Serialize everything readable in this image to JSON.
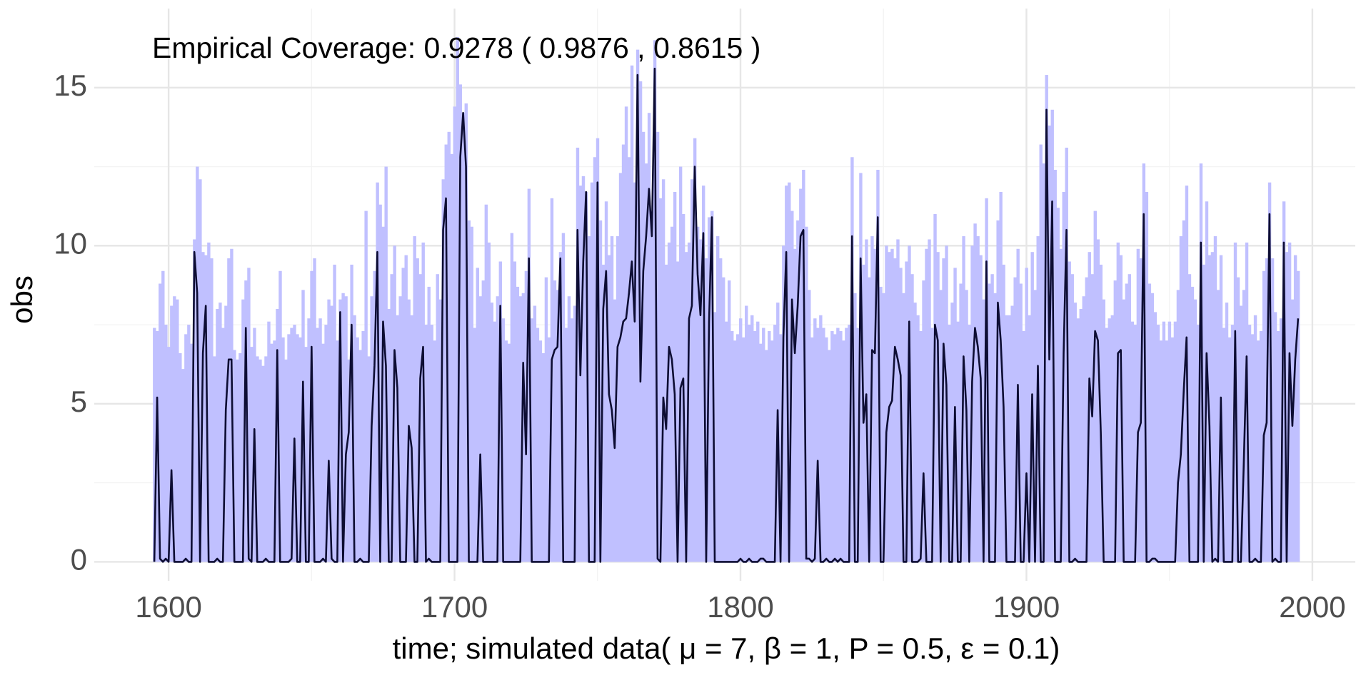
{
  "chart_data": {
    "type": "line",
    "annotation": "Empirical Coverage: 0.9278 ( 0.9876 , 0.8615 )",
    "xlabel": "time; simulated data( μ = 7,  β = 1,  P = 0.5,  ε = 0.1)",
    "ylabel": "obs",
    "xlim": [
      1574,
      2015
    ],
    "ylim": [
      -0.6,
      17.5
    ],
    "xticks": [
      1600,
      1700,
      1800,
      1900,
      2000
    ],
    "yticks": [
      0,
      5,
      10,
      15
    ],
    "minor_xticks": [
      1650,
      1750,
      1850,
      1950
    ],
    "minor_yticks": [
      2.5,
      7.5,
      12.5
    ],
    "grid": true,
    "x": [
      1595,
      1596,
      1597,
      1598,
      1599,
      1600,
      1601,
      1602,
      1603,
      1604,
      1605,
      1606,
      1607,
      1608,
      1609,
      1610,
      1611,
      1612,
      1613,
      1614,
      1615,
      1616,
      1617,
      1618,
      1619,
      1620,
      1621,
      1622,
      1623,
      1624,
      1625,
      1626,
      1627,
      1628,
      1629,
      1630,
      1631,
      1632,
      1633,
      1634,
      1635,
      1636,
      1637,
      1638,
      1639,
      1640,
      1641,
      1642,
      1643,
      1644,
      1645,
      1646,
      1647,
      1648,
      1649,
      1650,
      1651,
      1652,
      1653,
      1654,
      1655,
      1656,
      1657,
      1658,
      1659,
      1660,
      1661,
      1662,
      1663,
      1664,
      1665,
      1666,
      1667,
      1668,
      1669,
      1670,
      1671,
      1672,
      1673,
      1674,
      1675,
      1676,
      1677,
      1678,
      1679,
      1680,
      1681,
      1682,
      1683,
      1684,
      1685,
      1686,
      1687,
      1688,
      1689,
      1690,
      1691,
      1692,
      1693,
      1694,
      1695,
      1696,
      1697,
      1698,
      1699,
      1700,
      1701,
      1702,
      1703,
      1704,
      1705,
      1706,
      1707,
      1708,
      1709,
      1710,
      1711,
      1712,
      1713,
      1714,
      1715,
      1716,
      1717,
      1718,
      1719,
      1720,
      1721,
      1722,
      1723,
      1724,
      1725,
      1726,
      1727,
      1728,
      1729,
      1730,
      1731,
      1732,
      1733,
      1734,
      1735,
      1736,
      1737,
      1738,
      1739,
      1740,
      1741,
      1742,
      1743,
      1744,
      1745,
      1746,
      1747,
      1748,
      1749,
      1750,
      1751,
      1752,
      1753,
      1754,
      1755,
      1756,
      1757,
      1758,
      1759,
      1760,
      1761,
      1762,
      1763,
      1764,
      1765,
      1766,
      1767,
      1768,
      1769,
      1770,
      1771,
      1772,
      1773,
      1774,
      1775,
      1776,
      1777,
      1778,
      1779,
      1780,
      1781,
      1782,
      1783,
      1784,
      1785,
      1786,
      1787,
      1788,
      1789,
      1790,
      1791,
      1792,
      1793,
      1794,
      1795,
      1796,
      1797,
      1798,
      1799,
      1800,
      1801,
      1802,
      1803,
      1804,
      1805,
      1806,
      1807,
      1808,
      1809,
      1810,
      1811,
      1812,
      1813,
      1814,
      1815,
      1816,
      1817,
      1818,
      1819,
      1820,
      1821,
      1822,
      1823,
      1824,
      1825,
      1826,
      1827,
      1828,
      1829,
      1830,
      1831,
      1832,
      1833,
      1834,
      1835,
      1836,
      1837,
      1838,
      1839,
      1840,
      1841,
      1842,
      1843,
      1844,
      1845,
      1846,
      1847,
      1848,
      1849,
      1850,
      1851,
      1852,
      1853,
      1854,
      1855,
      1856,
      1857,
      1858,
      1859,
      1860,
      1861,
      1862,
      1863,
      1864,
      1865,
      1866,
      1867,
      1868,
      1869,
      1870,
      1871,
      1872,
      1873,
      1874,
      1875,
      1876,
      1877,
      1878,
      1879,
      1880,
      1881,
      1882,
      1883,
      1884,
      1885,
      1886,
      1887,
      1888,
      1889,
      1890,
      1891,
      1892,
      1893,
      1894,
      1895,
      1896,
      1897,
      1898,
      1899,
      1900,
      1901,
      1902,
      1903,
      1904,
      1905,
      1906,
      1907,
      1908,
      1909,
      1910,
      1911,
      1912,
      1913,
      1914,
      1915,
      1916,
      1917,
      1918,
      1919,
      1920,
      1921,
      1922,
      1923,
      1924,
      1925,
      1926,
      1927,
      1928,
      1929,
      1930,
      1931,
      1932,
      1933,
      1934,
      1935,
      1936,
      1937,
      1938,
      1939,
      1940,
      1941,
      1942,
      1943,
      1944,
      1945,
      1946,
      1947,
      1948,
      1949,
      1950,
      1951,
      1952,
      1953,
      1954,
      1955,
      1956,
      1957,
      1958,
      1959,
      1960,
      1961,
      1962,
      1963,
      1964,
      1965,
      1966,
      1967,
      1968,
      1969,
      1970,
      1971,
      1972,
      1973,
      1974,
      1975,
      1976,
      1977,
      1978,
      1979,
      1980,
      1981,
      1982,
      1983,
      1984,
      1985,
      1986,
      1987,
      1988,
      1989,
      1990,
      1991,
      1992,
      1993,
      1994,
      1995
    ],
    "series": [
      {
        "style": "bar",
        "color": "#c0c0ff",
        "values": [
          7.4,
          7.3,
          8.8,
          9.2,
          7.5,
          6.8,
          8.1,
          8.4,
          8.3,
          6.6,
          6.1,
          7.2,
          7.5,
          6.9,
          10.2,
          12.5,
          12.1,
          9.8,
          9.7,
          10.1,
          9.6,
          6.5,
          8.0,
          8.2,
          7.4,
          8.1,
          9.6,
          9.9,
          6.7,
          6.4,
          6.6,
          8.3,
          8.9,
          9.3,
          6.8,
          7.4,
          6.5,
          6.4,
          6.2,
          6.5,
          7.6,
          6.9,
          7.0,
          8.0,
          9.2,
          7.1,
          6.4,
          7.2,
          7.4,
          7.5,
          7.2,
          7.1,
          8.6,
          6.8,
          7.7,
          9.2,
          9.6,
          7.4,
          7.7,
          6.9,
          7.5,
          8.3,
          8.1,
          9.4,
          7.0,
          8.3,
          8.5,
          8.4,
          6.4,
          9.4,
          7.8,
          7.1,
          6.7,
          7.3,
          11.1,
          6.5,
          8.4,
          9.2,
          12.0,
          11.3,
          10.6,
          12.5,
          8.0,
          9.1,
          10.0,
          7.8,
          8.4,
          9.3,
          9.7,
          8.3,
          7.8,
          10.3,
          9.6,
          9.1,
          10.1,
          7.5,
          8.7,
          7.5,
          7.0,
          9.1,
          8.3,
          12.1,
          13.2,
          13.6,
          12.9,
          14.4,
          16.6,
          15.1,
          14.2,
          14.5,
          10.8,
          10.6,
          7.4,
          9.3,
          8.4,
          8.9,
          11.3,
          10.1,
          8.2,
          7.6,
          8.4,
          9.5,
          7.7,
          7.0,
          6.9,
          10.4,
          9.5,
          8.7,
          8.4,
          8.5,
          9.2,
          11.8,
          7.7,
          8.1,
          7.4,
          7.0,
          6.6,
          9.0,
          7.1,
          11.5,
          8.9,
          8.6,
          9.8,
          10.4,
          7.4,
          8.4,
          7.7,
          8.1,
          13.1,
          11.9,
          12.2,
          11.7,
          10.3,
          12.0,
          12.8,
          13.4,
          10.8,
          9.4,
          11.4,
          9.7,
          10.3,
          8.3,
          10.3,
          12.3,
          13.2,
          14.4,
          12.8,
          15.7,
          12.0,
          16.2,
          15.2,
          13.6,
          12.6,
          14.2,
          11.1,
          16.5,
          13.6,
          11.5,
          12.1,
          9.4,
          10.1,
          10.6,
          11.7,
          9.5,
          12.5,
          11.0,
          9.8,
          10.1,
          12.1,
          13.4,
          10.6,
          10.2,
          11.9,
          9.6,
          10.9,
          11.1,
          7.9,
          10.3,
          9.6,
          9.0,
          7.6,
          8.9,
          7.3,
          7.0,
          7.2,
          7.7,
          7.1,
          8.1,
          7.5,
          7.8,
          7.3,
          7.6,
          6.9,
          7.4,
          6.7,
          7.3,
          7.0,
          7.5,
          8.2,
          7.2,
          10.0,
          11.9,
          12.0,
          11.1,
          9.9,
          10.8,
          11.8,
          12.4,
          10.6,
          8.6,
          7.1,
          7.7,
          7.4,
          7.8,
          7.4,
          7.1,
          6.7,
          7.3,
          7.2,
          7.4,
          7.3,
          7.0,
          7.4,
          7.5,
          12.8,
          8.5,
          7.4,
          12.3,
          9.4,
          10.2,
          9.0,
          10.3,
          9.9,
          12.4,
          8.7,
          8.5,
          10.0,
          9.8,
          9.9,
          9.6,
          10.2,
          9.3,
          8.5,
          9.5,
          10.0,
          9.1,
          8.2,
          7.8,
          7.3,
          8.9,
          9.9,
          10.2,
          7.4,
          11.0,
          9.8,
          8.6,
          9.6,
          10.0,
          7.5,
          8.2,
          9.3,
          7.6,
          8.8,
          10.3,
          8.6,
          7.5,
          10.0,
          10.7,
          10.3,
          9.7,
          8.3,
          11.5,
          8.8,
          9.1,
          8.5,
          10.8,
          11.7,
          9.4,
          7.8,
          7.8,
          8.1,
          9.0,
          9.9,
          8.8,
          7.3,
          9.3,
          7.8,
          9.8,
          8.6,
          10.3,
          13.2,
          12.6,
          15.4,
          13.8,
          14.3,
          12.4,
          11.2,
          9.9,
          11.7,
          13.1,
          9.5,
          9.1,
          8.2,
          7.7,
          8.0,
          8.4,
          9.0,
          9.8,
          9.1,
          11.1,
          10.2,
          9.4,
          8.3,
          7.4,
          7.7,
          7.8,
          8.9,
          10.1,
          9.7,
          8.3,
          8.8,
          9.1,
          7.6,
          7.5,
          9.9,
          9.6,
          12.6,
          11.7,
          8.8,
          8.5,
          7.9,
          7.5,
          7.0,
          7.6,
          7.0,
          7.6,
          7.1,
          7.6,
          8.6,
          10.3,
          10.8,
          11.9,
          9.1,
          8.7,
          8.3,
          7.5,
          12.6,
          9.4,
          11.4,
          9.7,
          9.8,
          10.3,
          8.6,
          9.7,
          7.4,
          8.2,
          7.1,
          7.5,
          10.1,
          9.0,
          8.1,
          8.6,
          10.1,
          7.5,
          7.2,
          7.8,
          7.0,
          7.3,
          9.2,
          9.6,
          12.0,
          9.6,
          7.9,
          7.3,
          7.7,
          11.4,
          9.8,
          10.1,
          8.3,
          9.7,
          9.2
        ]
      },
      {
        "style": "line",
        "color": "#0d0d33",
        "values": [
          0,
          5.2,
          0.1,
          0,
          0.1,
          0,
          2.9,
          0,
          0,
          0,
          0,
          0.1,
          0,
          0,
          9.8,
          8.5,
          0,
          6.6,
          8.1,
          0,
          0,
          0,
          0.1,
          0,
          0,
          4.8,
          6.4,
          6.4,
          0,
          0,
          0,
          0,
          7.4,
          0.1,
          0,
          4.2,
          0,
          0,
          0,
          0.1,
          0,
          0,
          0,
          6.7,
          0,
          0,
          0,
          0,
          0.1,
          3.9,
          0,
          0,
          5.7,
          0,
          0,
          6.8,
          0,
          0,
          0,
          0.1,
          0,
          3.2,
          0.1,
          0,
          0,
          7.9,
          0,
          3.4,
          4.1,
          7.5,
          0,
          0,
          0.1,
          0,
          0,
          0,
          4.3,
          6.2,
          9.8,
          0,
          7.6,
          6.2,
          0,
          0,
          6.7,
          5.5,
          0,
          0,
          0,
          4.3,
          3.6,
          0,
          0,
          5.8,
          6.8,
          0,
          0.1,
          0,
          0,
          0,
          0,
          10.5,
          11.5,
          0,
          0,
          0,
          0,
          12.8,
          14.2,
          12.5,
          0,
          0,
          0,
          0,
          3.4,
          0,
          0,
          0,
          0,
          0,
          0,
          8.1,
          0,
          0,
          0,
          0,
          0,
          0,
          0,
          6.3,
          3.4,
          9.6,
          0,
          0,
          0,
          0,
          0,
          0,
          0,
          6.4,
          6.7,
          6.8,
          9.6,
          0,
          0,
          0,
          0,
          0,
          10.5,
          5.9,
          9.5,
          11.7,
          0,
          0,
          0,
          12.0,
          0,
          8.0,
          9.2,
          5.3,
          4.8,
          3.6,
          6.8,
          7.1,
          7.6,
          7.7,
          8.5,
          9.5,
          7.6,
          15.4,
          5.7,
          9.2,
          10.3,
          11.8,
          10.3,
          15.6,
          0.1,
          0,
          5.2,
          4.2,
          6.8,
          6.4,
          5.3,
          0,
          5.5,
          5.8,
          0,
          7.7,
          8.1,
          12.5,
          9.1,
          7.8,
          10.4,
          0,
          7.6,
          10.9,
          0,
          0,
          0,
          0,
          0,
          0,
          0,
          0,
          0,
          0.1,
          0,
          0,
          0.1,
          0,
          0,
          0,
          0.1,
          0.1,
          0,
          0,
          0,
          0,
          4.8,
          0,
          7.1,
          9.8,
          0,
          8.3,
          6.6,
          8.1,
          10.3,
          10.5,
          0.1,
          0.1,
          0,
          0.1,
          3.2,
          0,
          0,
          0.1,
          0,
          0,
          0.1,
          0,
          0.1,
          0,
          0,
          0,
          10.3,
          0,
          0,
          9.6,
          4.4,
          5.3,
          0,
          6.7,
          6.6,
          10.9,
          0,
          0,
          4.1,
          4.9,
          5.1,
          6.8,
          6.4,
          5.9,
          0,
          0,
          7.6,
          0,
          0,
          0,
          0.1,
          2.8,
          0,
          0,
          0,
          7.5,
          7.0,
          0,
          6.9,
          5.6,
          0,
          0,
          4.9,
          0,
          0,
          6.5,
          4.8,
          0,
          5.7,
          7.4,
          6.8,
          5.8,
          0,
          9.5,
          0,
          0,
          0,
          8.2,
          7.0,
          4.9,
          0,
          0,
          0,
          0,
          5.6,
          0,
          0,
          2.8,
          0,
          5.3,
          0,
          6.2,
          0,
          0,
          14.3,
          6.4,
          11.4,
          0,
          0,
          0,
          6.6,
          10.5,
          0,
          0,
          0.1,
          0,
          0,
          0,
          0,
          5.8,
          4.6,
          7.3,
          7.0,
          4.1,
          0,
          0,
          0,
          0,
          0,
          6.6,
          6.7,
          0,
          0,
          0,
          0,
          0,
          4.1,
          4.4,
          11.0,
          0,
          0,
          0.1,
          0.1,
          0,
          0,
          0,
          0,
          0,
          0,
          0,
          2.5,
          3.4,
          5.4,
          7.1,
          0,
          0,
          0,
          0,
          10.1,
          0,
          6.6,
          4.3,
          0,
          0.1,
          0,
          5.2,
          0,
          0,
          0,
          0,
          7.3,
          0,
          0,
          3.1,
          6.5,
          0,
          0,
          0.1,
          0,
          0,
          4.0,
          4.4,
          11.0,
          0,
          0.1,
          0,
          0,
          10.1,
          0,
          6.6,
          4.3,
          6.4,
          7.7
        ]
      }
    ]
  }
}
